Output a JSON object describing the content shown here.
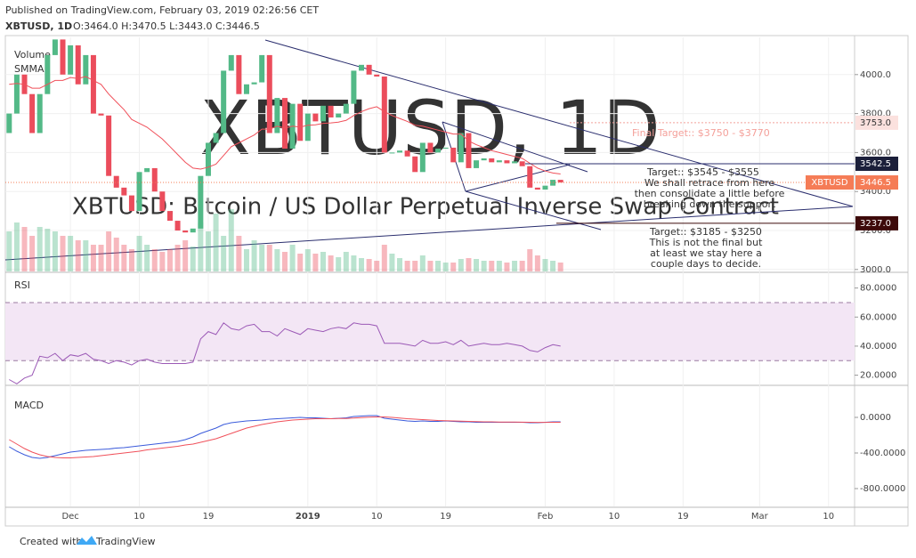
{
  "header": {
    "published": "Published on TradingView.com, February 03, 2019 02:26:56 CET",
    "symbol": "XBTUSD, 1D",
    "ohlc": "O:3464.0 H:3470.5 L:3443.0 C:3446.5"
  },
  "footer": {
    "created": "Created with",
    "brand": "TradingView"
  },
  "chart_data": [
    {
      "type": "candlestick",
      "watermark": "XBTUSD, 1D",
      "watermark_sub": "XBTUSD: Bitcoin / US Dollar Perpetual Inverse Swap Contract",
      "up_color": "#53b987",
      "down_color": "#eb4d5c",
      "first_open": 3700,
      "close": [
        3800,
        4000,
        3900,
        3700,
        3900,
        4100,
        4180,
        4000,
        4150,
        3950,
        4100,
        3800,
        3790,
        3480,
        3420,
        3380,
        3300,
        3500,
        3520,
        3400,
        3300,
        3250,
        3200,
        3190,
        3210,
        3480,
        3650,
        3700,
        4020,
        4100,
        3900,
        3950,
        3960,
        4100,
        3700,
        3880,
        3620,
        3850,
        3660,
        3800,
        3760,
        3840,
        3780,
        3800,
        3850,
        4020,
        4050,
        4000,
        3990,
        3600,
        3600,
        3610,
        3580,
        3500,
        3650,
        3600,
        3620,
        3625,
        3550,
        3700,
        3520,
        3560,
        3570,
        3550,
        3560,
        3545,
        3555,
        3530,
        3420,
        3410,
        3430,
        3460,
        3446.5
      ],
      "series": [
        {
          "name": "Volume",
          "values": [
            45,
            55,
            50,
            40,
            50,
            48,
            45,
            40,
            40,
            35,
            35,
            30,
            30,
            45,
            38,
            30,
            25,
            40,
            30,
            25,
            22,
            25,
            30,
            35,
            28,
            55,
            45,
            65,
            40,
            70,
            40,
            25,
            35,
            30,
            30,
            25,
            22,
            30,
            20,
            25,
            20,
            22,
            18,
            16,
            22,
            18,
            15,
            14,
            12,
            30,
            20,
            15,
            12,
            12,
            18,
            12,
            12,
            10,
            10,
            14,
            15,
            14,
            12,
            12,
            12,
            10,
            12,
            12,
            25,
            18,
            14,
            12,
            10
          ]
        },
        {
          "name": "SMMA",
          "color": "#f0505a",
          "values": [
            3950,
            3955,
            3950,
            3930,
            3930,
            3950,
            3970,
            3970,
            3985,
            3980,
            3990,
            3970,
            3950,
            3900,
            3860,
            3820,
            3770,
            3750,
            3730,
            3700,
            3670,
            3630,
            3590,
            3550,
            3520,
            3515,
            3525,
            3540,
            3585,
            3630,
            3650,
            3670,
            3690,
            3720,
            3720,
            3735,
            3725,
            3735,
            3730,
            3740,
            3742,
            3750,
            3752,
            3756,
            3765,
            3790,
            3810,
            3825,
            3835,
            3810,
            3790,
            3775,
            3760,
            3740,
            3735,
            3725,
            3715,
            3705,
            3695,
            3695,
            3660,
            3640,
            3625,
            3610,
            3600,
            3590,
            3580,
            3570,
            3545,
            3520,
            3505,
            3495,
            3490
          ]
        }
      ],
      "ylim": [
        2990,
        4200
      ],
      "yticks": [
        {
          "value": 3000,
          "label": "3000.0"
        },
        {
          "value": 3200,
          "label": "3200.0"
        },
        {
          "value": 3400,
          "label": "3400.0"
        },
        {
          "value": 3600,
          "label": "3600.0"
        },
        {
          "value": 3800,
          "label": "3800.0"
        },
        {
          "value": 4000,
          "label": "4000.0"
        }
      ],
      "xlim": [
        -0.5,
        110.4
      ],
      "xticks": [
        {
          "value": 8,
          "label": "Dec"
        },
        {
          "value": 17,
          "label": "10"
        },
        {
          "value": 26,
          "label": "19"
        },
        {
          "value": 39,
          "label": "2019"
        },
        {
          "value": 48,
          "label": "10"
        },
        {
          "value": 57,
          "label": "19"
        },
        {
          "value": 70,
          "label": "Feb"
        },
        {
          "value": 79,
          "label": "10"
        },
        {
          "value": 88,
          "label": "19"
        },
        {
          "value": 98,
          "label": "Mar"
        },
        {
          "value": 107,
          "label": "10"
        }
      ],
      "last_price": {
        "value": 3446.5,
        "label": "3446.5"
      },
      "symbol_tag": "XBTUSD",
      "levels": [
        {
          "value": 3753,
          "label": "3753.0"
        },
        {
          "value": 3542.5,
          "label": "3542.5"
        },
        {
          "value": 3237,
          "label": "3237.0"
        }
      ],
      "annotations": {
        "final_target": "Final Target:: $3750 - $3770",
        "target_1": "Target:: $3545 - $3555",
        "note_1": [
          "We shall retrace from here",
          "then consolidate a little before",
          "breaking down the support"
        ],
        "target_2": "Target:: $3185 - $3250",
        "note_2": [
          "This is not the final but",
          "at least we stay here a",
          "couple days to decide."
        ]
      }
    },
    {
      "type": "line",
      "title": "RSI",
      "color": "#9b59b6",
      "bands": [
        30,
        70
      ],
      "values": [
        17,
        14,
        18,
        20,
        33,
        32,
        35,
        30,
        34,
        33,
        35,
        31,
        30,
        28,
        30,
        29,
        27,
        30,
        31,
        29,
        28,
        28,
        28,
        28,
        29,
        45,
        50,
        48,
        56,
        52,
        51,
        54,
        55,
        50,
        50,
        47,
        52,
        50,
        48,
        52,
        51,
        50,
        52,
        53,
        52,
        56,
        55,
        55,
        54,
        42,
        42,
        42,
        41,
        40,
        44,
        42,
        42,
        43,
        41,
        44,
        40,
        41,
        42,
        41,
        41,
        42,
        41,
        40,
        37,
        36,
        39,
        41,
        40
      ],
      "ylim": [
        13.6,
        90.2
      ],
      "yticks": [
        {
          "value": 20,
          "label": "20.0000"
        },
        {
          "value": 40,
          "label": "40.0000"
        },
        {
          "value": 60,
          "label": "60.0000"
        },
        {
          "value": 80,
          "label": "80.0000"
        }
      ]
    },
    {
      "type": "line",
      "title": "MACD",
      "series": [
        {
          "color": "#3b5bdb",
          "values": [
            -330,
            -380,
            -420,
            -450,
            -460,
            -450,
            -430,
            -410,
            -390,
            -380,
            -370,
            -365,
            -360,
            -355,
            -345,
            -340,
            -330,
            -320,
            -310,
            -300,
            -290,
            -280,
            -270,
            -250,
            -220,
            -180,
            -150,
            -120,
            -80,
            -60,
            -50,
            -40,
            -35,
            -30,
            -20,
            -15,
            -10,
            -5,
            0,
            -5,
            -5,
            -10,
            -15,
            -10,
            -5,
            10,
            15,
            20,
            20,
            -10,
            -20,
            -30,
            -40,
            -45,
            -40,
            -45,
            -45,
            -40,
            -45,
            -50,
            -50,
            -55,
            -55,
            -55,
            -55,
            -55,
            -55,
            -55,
            -60,
            -60,
            -55,
            -50,
            -50
          ]
        },
        {
          "color": "#f0505a",
          "values": [
            -250,
            -300,
            -350,
            -390,
            -420,
            -440,
            -450,
            -455,
            -455,
            -450,
            -445,
            -440,
            -430,
            -420,
            -410,
            -400,
            -390,
            -380,
            -365,
            -355,
            -345,
            -335,
            -325,
            -310,
            -300,
            -280,
            -260,
            -240,
            -210,
            -180,
            -150,
            -120,
            -100,
            -80,
            -65,
            -50,
            -40,
            -30,
            -25,
            -20,
            -15,
            -15,
            -15,
            -12,
            -12,
            -8,
            -2,
            2,
            5,
            5,
            0,
            -8,
            -15,
            -20,
            -25,
            -30,
            -35,
            -38,
            -40,
            -42,
            -45,
            -48,
            -50,
            -50,
            -52,
            -52,
            -53,
            -54,
            -55,
            -56,
            -56,
            -55,
            -55
          ]
        }
      ],
      "ylim": [
        -1000,
        350
      ],
      "yticks": [
        {
          "value": -800,
          "label": "-800.0000"
        },
        {
          "value": -400,
          "label": "-400.0000"
        },
        {
          "value": 0,
          "label": "0.0000"
        }
      ]
    }
  ]
}
